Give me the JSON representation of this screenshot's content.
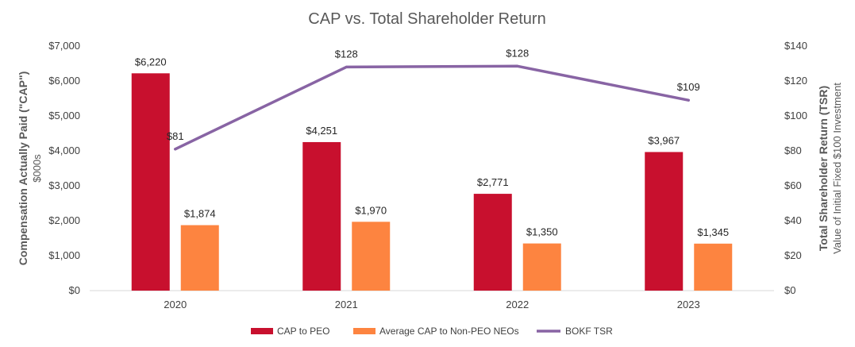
{
  "chart_data": {
    "type": "bar",
    "title": "CAP vs. Total Shareholder Return",
    "categories": [
      "2020",
      "2021",
      "2022",
      "2023"
    ],
    "series": [
      {
        "name": "CAP to PEO",
        "kind": "bar",
        "axis": "left",
        "color": "#c8102e",
        "values": [
          6220,
          4251,
          2771,
          3967
        ],
        "labels": [
          "$6,220",
          "$4,251",
          "$2,771",
          "$3,967"
        ]
      },
      {
        "name": "Average CAP to Non-PEO NEOs",
        "kind": "bar",
        "axis": "left",
        "color": "#fd8440",
        "values": [
          1874,
          1970,
          1350,
          1345
        ],
        "labels": [
          "$1,874",
          "$1,970",
          "$1,350",
          "$1,345"
        ]
      },
      {
        "name": "BOKF TSR",
        "kind": "line",
        "axis": "right",
        "color": "#8864a4",
        "values": [
          81,
          128,
          128.5,
          109
        ],
        "labels": [
          "$81",
          "$128",
          "$128",
          "$109"
        ]
      }
    ],
    "y_left": {
      "label": "Compensation Actually Paid (\"CAP\")",
      "sublabel": "$000s",
      "range": [
        0,
        7000
      ],
      "ticks": [
        0,
        1000,
        2000,
        3000,
        4000,
        5000,
        6000,
        7000
      ],
      "tick_labels": [
        "$0",
        "$1,000",
        "$2,000",
        "$3,000",
        "$4,000",
        "$5,000",
        "$6,000",
        "$7,000"
      ]
    },
    "y_right": {
      "label": "Total Shareholder Return (TSR)",
      "sublabel": "Value of Initial Fixed $100 Investment",
      "range": [
        0,
        140
      ],
      "ticks": [
        0,
        20,
        40,
        60,
        80,
        100,
        120,
        140
      ],
      "tick_labels": [
        "$0",
        "$20",
        "$40",
        "$60",
        "$80",
        "$100",
        "$120",
        "$140"
      ]
    },
    "grid": false,
    "legend": {
      "position": "bottom"
    }
  }
}
